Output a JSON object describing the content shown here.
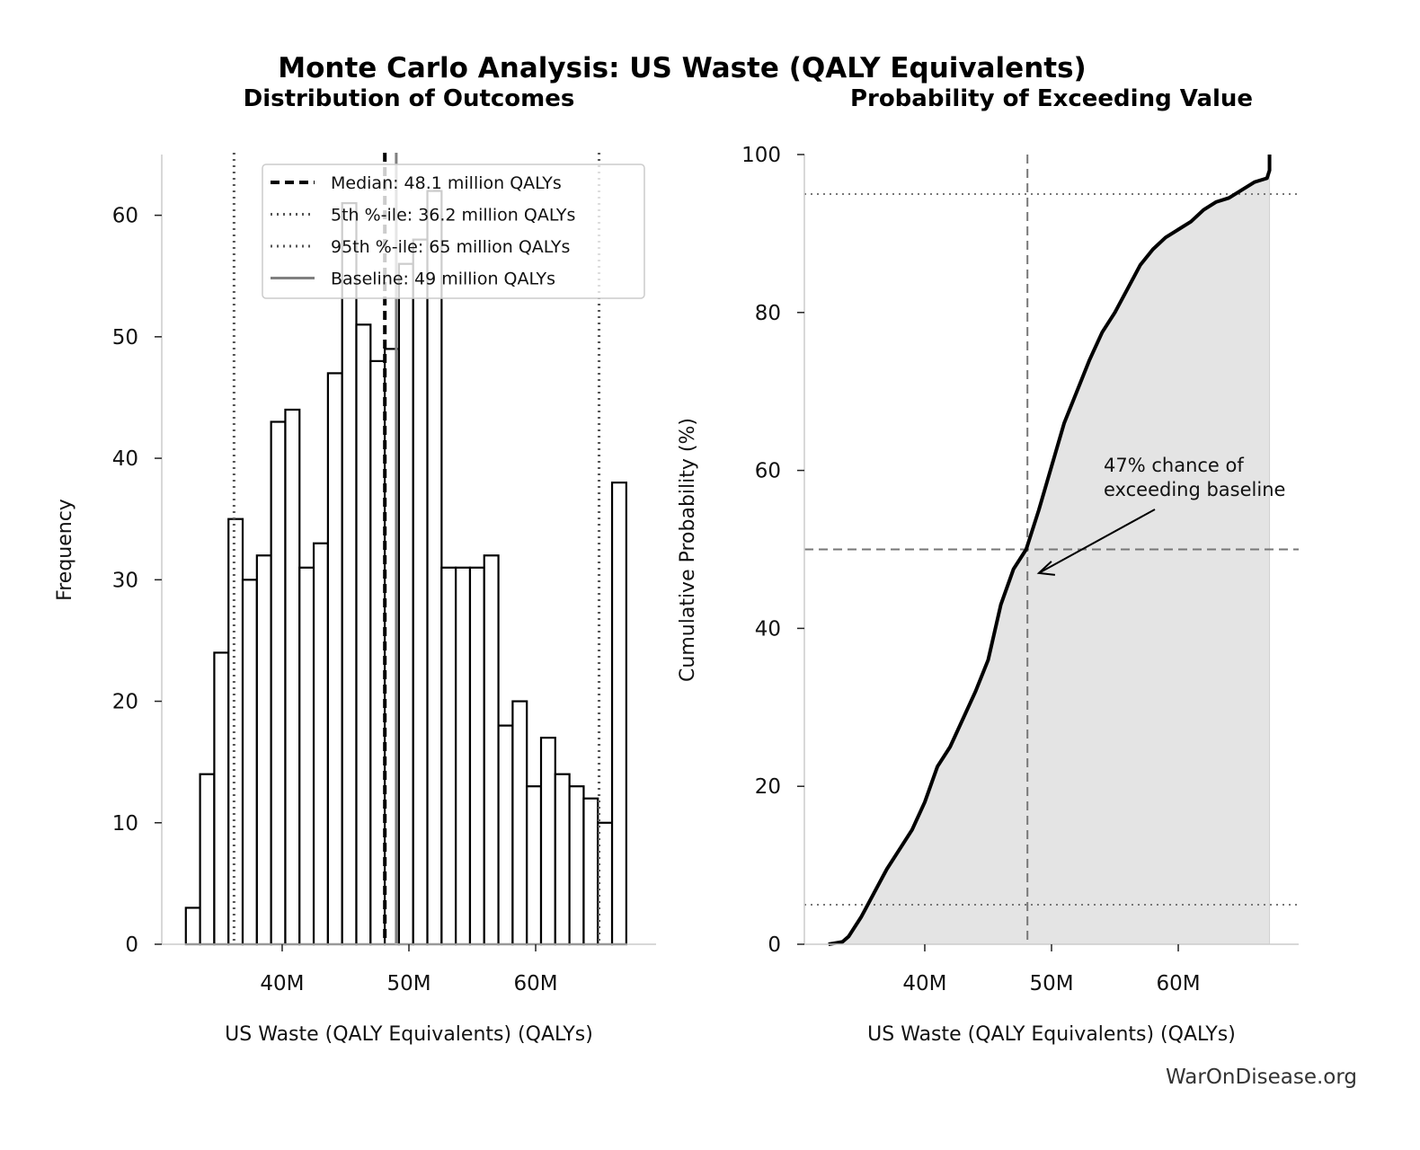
{
  "title": "Monte Carlo Analysis: US Waste (QALY Equivalents)",
  "watermark": "WarOnDisease.org",
  "colors": {
    "bar_fill": "#ffffff",
    "bar_edge": "#000000",
    "fill_area": "#e4e4e4",
    "baseline": "#808080",
    "ref_lines": "#555555"
  },
  "chart_data": [
    {
      "type": "bar",
      "subtitle": "Distribution of Outcomes",
      "xlabel": "US Waste (QALY Equivalents) (QALYs)",
      "ylabel": "Frequency",
      "xlim": [
        30.5,
        69.5
      ],
      "ylim": [
        0,
        65
      ],
      "xticks": [
        {
          "v": 40,
          "label": "40M"
        },
        {
          "v": 50,
          "label": "50M"
        },
        {
          "v": 60,
          "label": "60M"
        }
      ],
      "yticks": [
        {
          "v": 0,
          "label": "0"
        },
        {
          "v": 10,
          "label": "10"
        },
        {
          "v": 20,
          "label": "20"
        },
        {
          "v": 30,
          "label": "30"
        },
        {
          "v": 40,
          "label": "40"
        },
        {
          "v": 50,
          "label": "50"
        },
        {
          "v": 60,
          "label": "60"
        }
      ],
      "bin_range": [
        32.4,
        67.15
      ],
      "counts": [
        3,
        14,
        24,
        35,
        30,
        32,
        43,
        44,
        31,
        33,
        47,
        61,
        51,
        48,
        49,
        56,
        58,
        62,
        31,
        31,
        31,
        32,
        18,
        20,
        13,
        17,
        14,
        13,
        12,
        10,
        38
      ],
      "grid": false,
      "vlines": [
        {
          "x": 48.1,
          "style": "dashed",
          "label": "Median: 48.1 million QALYs"
        },
        {
          "x": 36.2,
          "style": "dotted",
          "label": "5th %-ile: 36.2 million QALYs"
        },
        {
          "x": 65,
          "style": "dotted",
          "label": "95th %-ile: 65 million QALYs"
        },
        {
          "x": 49,
          "style": "solid",
          "label": "Baseline: 49 million QALYs"
        }
      ],
      "legend_placement": "top-center"
    },
    {
      "type": "area",
      "subtitle": "Probability of Exceeding Value",
      "xlabel": "US Waste (QALY Equivalents) (QALYs)",
      "ylabel": "Cumulative Probability (%)",
      "xlim": [
        30.5,
        69.5
      ],
      "ylim": [
        0,
        100
      ],
      "xticks": [
        {
          "v": 40,
          "label": "40M"
        },
        {
          "v": 50,
          "label": "50M"
        },
        {
          "v": 60,
          "label": "60M"
        }
      ],
      "yticks": [
        {
          "v": 0,
          "label": "0"
        },
        {
          "v": 20,
          "label": "20"
        },
        {
          "v": 40,
          "label": "40"
        },
        {
          "v": 60,
          "label": "60"
        },
        {
          "v": 80,
          "label": "80"
        },
        {
          "v": 100,
          "label": "100"
        }
      ],
      "x": [
        32.4,
        33.5,
        34,
        35,
        36,
        37,
        38,
        39,
        40,
        41,
        42,
        43,
        44,
        45,
        46,
        47,
        48,
        49,
        50,
        51,
        52,
        53,
        54,
        55,
        56,
        57,
        58,
        59,
        60,
        61,
        62,
        63,
        64,
        65,
        66,
        67,
        67.2,
        67.2
      ],
      "y": [
        0,
        0.3,
        1,
        3.5,
        6.5,
        9.5,
        12,
        14.5,
        18,
        22.5,
        25,
        28.5,
        32,
        36,
        43,
        47.5,
        50,
        55,
        60.5,
        66,
        70,
        74,
        77.5,
        80,
        83,
        86,
        88,
        89.5,
        90.5,
        91.5,
        93,
        94,
        94.5,
        95.5,
        96.5,
        97,
        98,
        100
      ],
      "hlines": [
        {
          "y": 5,
          "style": "dotted"
        },
        {
          "y": 50,
          "style": "dashed"
        },
        {
          "y": 95,
          "style": "dotted"
        }
      ],
      "vlines": [
        {
          "x": 48.1,
          "style": "dashed"
        }
      ],
      "annotation": {
        "lines": [
          "47% chance of",
          "exceeding baseline"
        ],
        "arrow_to": [
          49,
          47
        ]
      },
      "grid": false
    }
  ]
}
